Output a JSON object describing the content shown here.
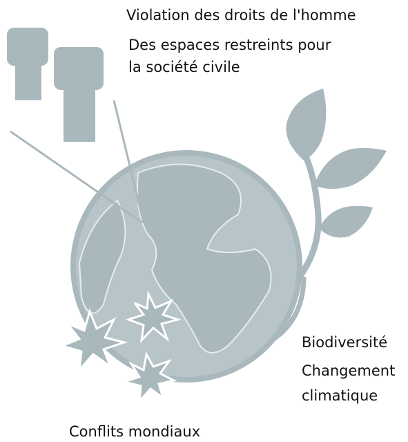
{
  "labels": {
    "human_rights": "Violation des droits de l'homme",
    "civil_society": [
      "Des espaces restreints pour",
      "la société civile"
    ],
    "biodiversity": "Biodiversité",
    "climate": [
      "Changement",
      "climatique"
    ],
    "conflicts": "Conflits mondiaux"
  }
}
